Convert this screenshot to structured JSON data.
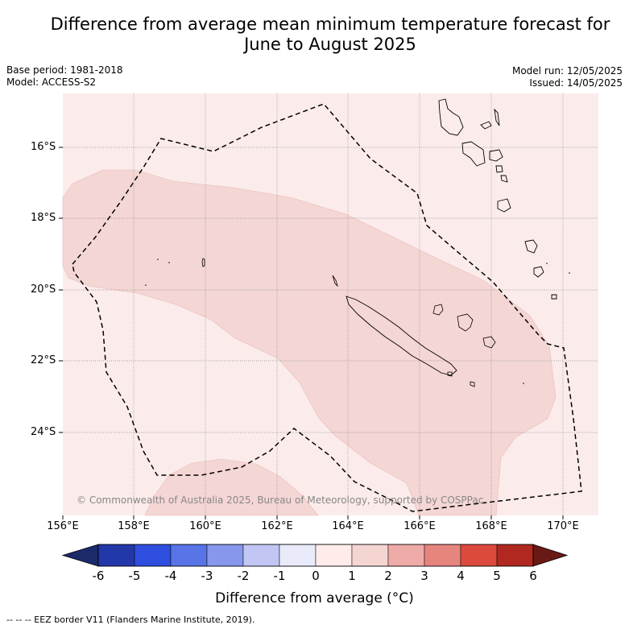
{
  "header": {
    "title_line1": "Difference from average mean minimum temperature forecast for",
    "title_line2": "June to August 2025",
    "base_period": "Base period: 1981-2018",
    "model": "Model: ACCESS-S2",
    "model_run": "Model run: 12/05/2025",
    "issued": "Issued: 14/05/2025"
  },
  "map": {
    "lat_labels": [
      "16°S",
      "18°S",
      "20°S",
      "22°S",
      "24°S"
    ],
    "lon_labels": [
      "156°E",
      "158°E",
      "160°E",
      "162°E",
      "164°E",
      "166°E",
      "168°E",
      "170°E"
    ],
    "copyright": "© Commonwealth of Australia 2025, Bureau of Meteorology, supported by COSPPac",
    "background_category": "0 to 1",
    "shaded_category": "1 to 2",
    "colors": {
      "light": "#fbeceb",
      "medium": "#f4d6d4",
      "grid": "#888888"
    }
  },
  "legend": {
    "ticks": [
      "-6",
      "-5",
      "-4",
      "-3",
      "-2",
      "-1",
      "0",
      "1",
      "2",
      "3",
      "4",
      "5",
      "6"
    ],
    "colors": [
      "#1b2a6b",
      "#2338a8",
      "#2e4ee0",
      "#5874e6",
      "#8797eb",
      "#c1c6f4",
      "#e9ebfb",
      "#fdecea",
      "#f5d5d2",
      "#efaba7",
      "#e6857e",
      "#dc4a3d",
      "#b0281f",
      "#6a1a15"
    ],
    "title": "Difference from average (°C)",
    "footnote": "-- -- -- EEZ border V11 (Flanders Marine Institute, 2019)."
  }
}
